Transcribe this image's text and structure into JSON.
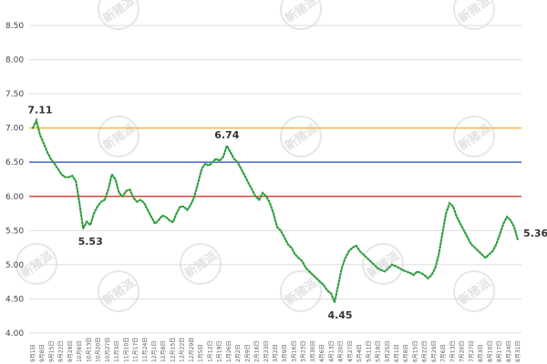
{
  "chart_data": {
    "type": "line",
    "ylim": [
      4.0,
      8.5
    ],
    "yticks": [
      "8.50",
      "8.00",
      "7.50",
      "7.00",
      "6.50",
      "6.00",
      "5.50",
      "5.00",
      "4.50",
      "4.00"
    ],
    "grid": true,
    "xticks": [
      "9月1日",
      "9月8日",
      "9月15日",
      "9月22日",
      "9月29日",
      "10月6日",
      "10月13日",
      "10月20日",
      "10月27日",
      "11月3日",
      "11月10日",
      "11月17日",
      "11月24日",
      "12月1日",
      "12月8日",
      "12月15日",
      "12月22日",
      "12月29日",
      "1月5日",
      "1月12日",
      "1月19日",
      "1月26日",
      "2月2日",
      "2月9日",
      "2月16日",
      "2月23日",
      "3月2日",
      "3月9日",
      "3月16日",
      "3月23日",
      "3月30日",
      "4月6日",
      "4月13日",
      "4月20日",
      "4月27日",
      "5月4日",
      "5月11日",
      "5月18日",
      "5月25日",
      "6月1日",
      "6月8日",
      "6月15日",
      "6月22日",
      "6月29日",
      "7月6日",
      "7月13日",
      "7月20日",
      "7月27日",
      "8月3日",
      "8月10日",
      "8月17日",
      "8月24日",
      "8月31日"
    ],
    "series": [
      {
        "values": [
          7.0,
          7.11,
          6.9,
          6.78,
          6.65,
          6.55,
          6.48,
          6.4,
          6.32,
          6.28,
          6.28,
          6.3,
          6.22,
          5.9,
          5.53,
          5.63,
          5.58,
          5.75,
          5.85,
          5.92,
          5.95,
          6.1,
          6.32,
          6.25,
          6.05,
          6.0,
          6.08,
          6.1,
          5.98,
          5.92,
          5.95,
          5.9,
          5.8,
          5.7,
          5.6,
          5.65,
          5.72,
          5.7,
          5.65,
          5.62,
          5.75,
          5.85,
          5.85,
          5.8,
          5.88,
          6.0,
          6.2,
          6.4,
          6.48,
          6.45,
          6.5,
          6.55,
          6.52,
          6.58,
          6.74,
          6.65,
          6.55,
          6.5,
          6.4,
          6.3,
          6.2,
          6.1,
          6.0,
          5.95,
          6.05,
          6.0,
          5.9,
          5.75,
          5.55,
          5.5,
          5.4,
          5.3,
          5.25,
          5.15,
          5.1,
          5.05,
          4.95,
          4.9,
          4.85,
          4.8,
          4.75,
          4.7,
          4.62,
          4.58,
          4.45,
          4.7,
          4.95,
          5.1,
          5.2,
          5.25,
          5.28,
          5.2,
          5.15,
          5.1,
          5.05,
          5.0,
          4.95,
          4.92,
          4.9,
          4.95,
          5.0,
          4.98,
          4.95,
          4.92,
          4.9,
          4.88,
          4.85,
          4.9,
          4.88,
          4.85,
          4.8,
          4.85,
          4.95,
          5.15,
          5.45,
          5.75,
          5.9,
          5.85,
          5.7,
          5.6,
          5.5,
          5.4,
          5.3,
          5.25,
          5.2,
          5.15,
          5.1,
          5.15,
          5.2,
          5.3,
          5.45,
          5.6,
          5.7,
          5.65,
          5.55,
          5.36
        ],
        "color": "#2e9e3e",
        "style": "dotted"
      }
    ],
    "reference_lines": [
      {
        "value": 7.0,
        "color": "#f2b233"
      },
      {
        "value": 6.5,
        "color": "#3557c4"
      },
      {
        "value": 6.0,
        "color": "#d23a2a"
      }
    ],
    "annotations": [
      {
        "text": "7.11",
        "x_index": 1,
        "value": 7.11,
        "position": "above"
      },
      {
        "text": "5.53",
        "x_index": 14,
        "value": 5.53,
        "position": "below"
      },
      {
        "text": "6.74",
        "x_index": 54,
        "value": 6.74,
        "position": "above"
      },
      {
        "text": "4.45",
        "x_index": 84,
        "value": 4.45,
        "position": "below"
      },
      {
        "text": "5.36",
        "x_index": 135,
        "value": 5.36,
        "position": "right"
      }
    ]
  },
  "watermark": {
    "text": "新猪派",
    "icon": "pig-logo-icon"
  }
}
